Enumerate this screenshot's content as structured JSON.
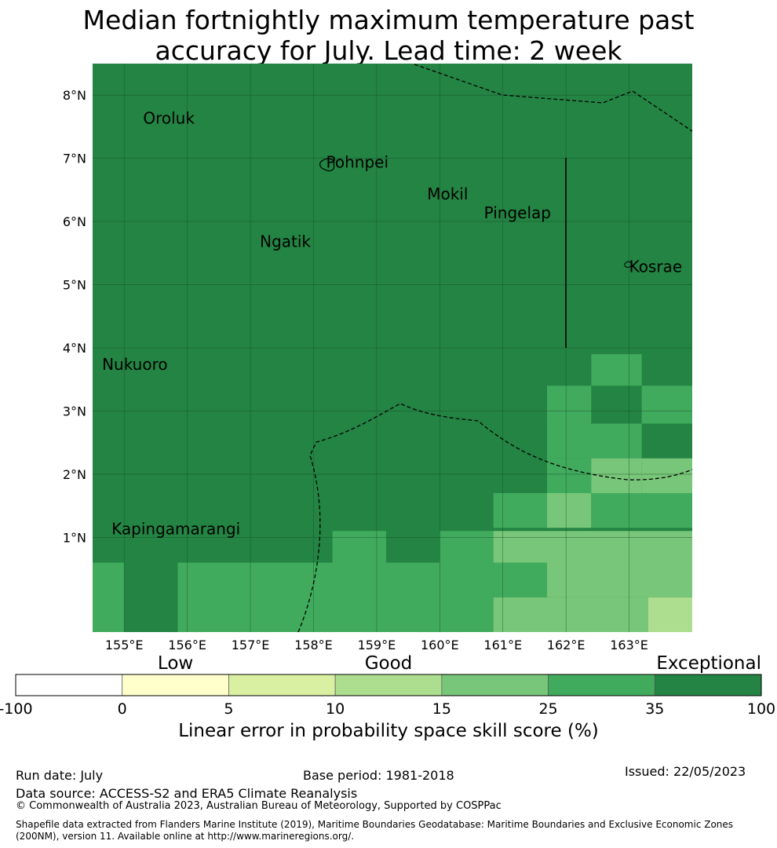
{
  "title": {
    "line1": "Median fortnightly maximum temperature past",
    "line2": "accuracy for July. Lead time: 2 week"
  },
  "map": {
    "lon_range": [
      154.5,
      164.0
    ],
    "lat_range": [
      -0.5,
      8.5
    ],
    "lon_ticks": [
      155,
      156,
      157,
      158,
      159,
      160,
      161,
      162,
      163
    ],
    "lon_labels": [
      "155°E",
      "156°E",
      "157°E",
      "158°E",
      "159°E",
      "160°E",
      "161°E",
      "162°E",
      "163°E"
    ],
    "lat_ticks": [
      1,
      2,
      3,
      4,
      5,
      6,
      7,
      8
    ],
    "lat_labels": [
      "1°N",
      "2°N",
      "3°N",
      "4°N",
      "5°N",
      "6°N",
      "7°N",
      "8°N"
    ],
    "gridlines": true,
    "places": [
      {
        "name": "Oroluk",
        "lon": 155.3,
        "lat": 7.55
      },
      {
        "name": "Pohnpei",
        "lon": 158.2,
        "lat": 6.85
      },
      {
        "name": "Mokil",
        "lon": 159.8,
        "lat": 6.35
      },
      {
        "name": "Pingelap",
        "lon": 160.7,
        "lat": 6.05
      },
      {
        "name": "Ngatik",
        "lon": 157.15,
        "lat": 5.6
      },
      {
        "name": "Kosrae",
        "lon": 163.0,
        "lat": 5.2
      },
      {
        "name": "Nukuoro",
        "lon": 154.65,
        "lat": 3.65
      },
      {
        "name": "Kapingamarangi",
        "lon": 154.8,
        "lat": 1.05
      }
    ],
    "cell_categories": [
      {
        "lon": [
          162.4,
          163.2
        ],
        "lat": [
          3.4,
          3.9
        ],
        "category": "25-35"
      },
      {
        "lon": [
          161.7,
          162.4
        ],
        "lat": [
          2.8,
          3.4
        ],
        "category": "25-35"
      },
      {
        "lon": [
          163.2,
          164.0
        ],
        "lat": [
          2.8,
          3.4
        ],
        "category": "25-35"
      },
      {
        "lon": [
          161.7,
          163.2
        ],
        "lat": [
          2.25,
          2.8
        ],
        "category": "25-35"
      },
      {
        "lon": [
          163.2,
          164.0
        ],
        "lat": [
          1.7,
          2.25
        ],
        "category": "15-25"
      },
      {
        "lon": [
          161.7,
          162.4
        ],
        "lat": [
          1.7,
          2.25
        ],
        "category": "25-35"
      },
      {
        "lon": [
          162.4,
          163.2
        ],
        "lat": [
          1.7,
          2.25
        ],
        "category": "15-25"
      },
      {
        "lon": [
          161.7,
          162.4
        ],
        "lat": [
          1.15,
          1.7
        ],
        "category": "15-25"
      },
      {
        "lon": [
          160.85,
          161.7
        ],
        "lat": [
          1.15,
          1.7
        ],
        "category": "25-35"
      },
      {
        "lon": [
          162.4,
          164.0
        ],
        "lat": [
          1.15,
          1.7
        ],
        "category": "25-35"
      },
      {
        "lon": [
          158.3,
          159.15
        ],
        "lat": [
          0.6,
          1.1
        ],
        "category": "25-35"
      },
      {
        "lon": [
          160.0,
          160.85
        ],
        "lat": [
          0.6,
          1.1
        ],
        "category": "25-35"
      },
      {
        "lon": [
          160.85,
          164.0
        ],
        "lat": [
          0.6,
          1.1
        ],
        "category": "15-25"
      },
      {
        "lon": [
          154.5,
          155.0
        ],
        "lat": [
          -0.5,
          0.6
        ],
        "category": "25-35"
      },
      {
        "lon": [
          155.85,
          160.85
        ],
        "lat": [
          -0.5,
          0.6
        ],
        "category": "25-35"
      },
      {
        "lon": [
          160.85,
          161.7
        ],
        "lat": [
          0.05,
          0.6
        ],
        "category": "25-35"
      },
      {
        "lon": [
          161.7,
          164.0
        ],
        "lat": [
          0.05,
          0.6
        ],
        "category": "15-25"
      },
      {
        "lon": [
          160.85,
          163.3
        ],
        "lat": [
          -0.5,
          0.05
        ],
        "category": "15-25"
      },
      {
        "lon": [
          163.3,
          164.0
        ],
        "lat": [
          -0.5,
          0.05
        ],
        "category": "10-15"
      }
    ],
    "background_category": "35-100"
  },
  "colorbar": {
    "categories": [
      {
        "text": "Low",
        "at": 1.5
      },
      {
        "text": "Good",
        "at": 3.5
      },
      {
        "text": "Exceptional",
        "at": 6.5
      }
    ],
    "ticks": [
      "-100",
      "0",
      "5",
      "10",
      "15",
      "25",
      "35",
      "100"
    ],
    "colors": [
      "#ffffff",
      "#ffffcc",
      "#d9f0a3",
      "#addd8e",
      "#78c679",
      "#41ab5d",
      "#238443"
    ],
    "label": "Linear error in probability space skill score (%)"
  },
  "colors": {
    "35-100": "#238443",
    "25-35": "#41ab5d",
    "15-25": "#78c679",
    "10-15": "#addd8e"
  },
  "footer": {
    "run_date": "Run date: July",
    "base_period": "Base period: 1981-2018",
    "issued": "Issued: 22/05/2023",
    "data_source": "Data source: ACCESS-S2 and ERA5 Climate Reanalysis",
    "copyright": "© Commonwealth of Australia 2023, Australian Bureau of Meteorology, Supported by COSPPac",
    "shapefile": "Shapefile data extracted from Flanders Marine Institute (2019), Maritime Boundaries Geodatabase: Maritime Boundaries and Exclusive Economic Zones (200NM), version 11. Available online at http://www.marineregions.org/."
  }
}
